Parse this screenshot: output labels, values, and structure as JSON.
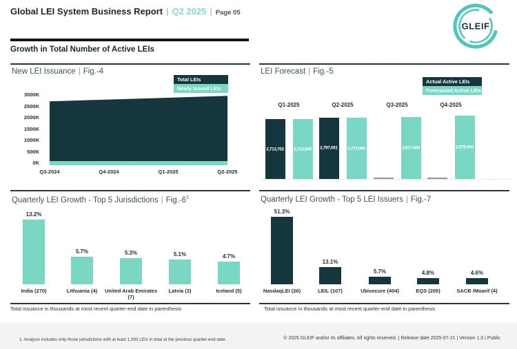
{
  "ui": {
    "pipe": "|"
  },
  "header": {
    "title": "Global LEI System Business Report",
    "period": "Q2 2025",
    "page": "Page 05",
    "logo_text": "GLEIF"
  },
  "section": {
    "title": "Growth in Total Number of Active LEIs"
  },
  "colors": {
    "dark": "#16363d",
    "teal": "#7ad7c4",
    "logo_teal": "#4ec7b6",
    "period_teal": "#85dbc8",
    "footer_bg": "#f3f3f3"
  },
  "chart_data": [
    {
      "id": "fig4",
      "type": "area",
      "title": "New LEI Issuance",
      "fig_label": "Fig.-4",
      "legend": [
        {
          "label": "Total LEIs",
          "color": "#16363d"
        },
        {
          "label": "Newly Issued LEIs",
          "color": "#7ad7c4"
        }
      ],
      "x": [
        "Q3-2024",
        "Q4-2024",
        "Q1-2025",
        "Q2-2025"
      ],
      "series": [
        {
          "name": "Total LEIs",
          "values_k": [
            2690,
            2770,
            2850,
            2930
          ]
        },
        {
          "name": "Newly Issued LEIs",
          "values_k": [
            120,
            120,
            120,
            120
          ]
        }
      ],
      "y_ticks": [
        "3000K",
        "2500K",
        "2000K",
        "1500K",
        "1000K",
        "500K",
        "0K"
      ],
      "ylim_k": [
        0,
        3000
      ],
      "grid": false,
      "legend_position": "top-right"
    },
    {
      "id": "fig5",
      "type": "bar",
      "title": "LEI Forecast",
      "fig_label": "Fig.-5",
      "legend": [
        {
          "label": "Actual Active LEIs",
          "color": "#16363d"
        },
        {
          "label": "Forecasted Active LEIs",
          "color": "#7ad7c4"
        }
      ],
      "categories": [
        "Q1-2025",
        "Q2-2025",
        "Q3-2025",
        "Q4-2025"
      ],
      "series": [
        {
          "name": "Actual Active LEIs",
          "labels": [
            "2,713,702",
            "2,797,061",
            null,
            null
          ],
          "values": [
            2713702,
            2797061,
            null,
            null
          ]
        },
        {
          "name": "Forecasted Active LEIs",
          "labels": [
            "2,713,000",
            "2,771,000",
            "2,817,000",
            "2,878,000"
          ],
          "values": [
            2713000,
            2771000,
            2817000,
            2878000
          ]
        }
      ],
      "ylim": [
        0,
        2878000
      ],
      "legend_position": "top-right"
    },
    {
      "id": "fig6",
      "type": "bar",
      "title": "Quarterly LEI Growth - Top 5 Jurisdictions",
      "fig_label": "Fig.-6",
      "fig_superscript": "1",
      "categories": [
        "India (270)",
        "Lithuania (4)",
        "United Arab Emirates (7)",
        "Latvia (3)",
        "Iceland (5)"
      ],
      "values_pct": [
        13.2,
        5.7,
        5.3,
        5.1,
        4.7
      ],
      "labels": [
        "13.2%",
        "5.7%",
        "5.3%",
        "5.1%",
        "4.7%"
      ],
      "note": "Total issuance in thousands at most recent quarter-end date in parenthesis"
    },
    {
      "id": "fig7",
      "type": "bar",
      "title": "Quarterly LEI Growth - Top 5 LEI Issuers",
      "fig_label": "Fig.-7",
      "categories": [
        "NasdaqLEI (26)",
        "LEIL (107)",
        "Ubisecure (404)",
        "EQS (205)",
        "SACB /Moarif (4)"
      ],
      "values_pct": [
        51.3,
        13.1,
        5.7,
        4.8,
        4.6
      ],
      "labels": [
        "51.3%",
        "13.1%",
        "5.7%",
        "4.8%",
        "4.6%"
      ],
      "note": "Total issuance in thousands at most recent quarter-end date in parenthesis"
    }
  ],
  "footer": {
    "footnote": "1. Analysis includes only those jurisdictions with at least 1,000 LEIs in total at the previous quarter-end date.",
    "copyright": "© 2025 GLEIF and/or its affiliates. All rights reserved. | Release date 2025-07-21 | Version 1.0 | Public"
  }
}
